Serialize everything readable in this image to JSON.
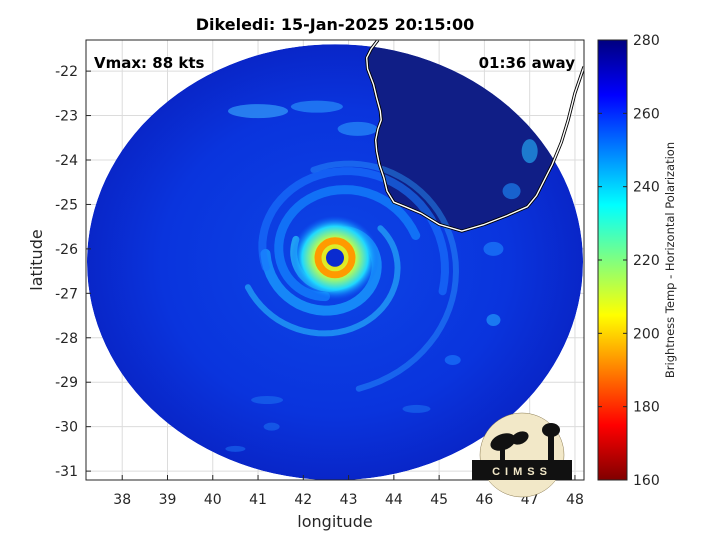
{
  "chart_data": {
    "type": "heatmap",
    "title": "Dikeledi: 15-Jan-2025 20:15:00",
    "xlabel": "longitude",
    "ylabel": "latitude",
    "xlim": [
      37.2,
      48.2
    ],
    "ylim": [
      -31.2,
      -21.3
    ],
    "xticks": [
      "38",
      "39",
      "40",
      "41",
      "42",
      "43",
      "44",
      "45",
      "46",
      "47",
      "48"
    ],
    "yticks": [
      "-22",
      "-23",
      "-24",
      "-25",
      "-26",
      "-27",
      "-28",
      "-29",
      "-30",
      "-31"
    ],
    "grid": true,
    "annotations": {
      "vmax": "Vmax: 88 kts",
      "time_away": "01:36 away"
    },
    "storm_center": {
      "lon": 42.7,
      "lat": -26.2
    },
    "swath_center": {
      "lon": 42.7,
      "lat": -26.3
    },
    "colorbar": {
      "label": "Brightness Temp - Horizontal Polarization",
      "min": 160,
      "max": 280,
      "ticks": [
        "280",
        "260",
        "240",
        "220",
        "200",
        "180",
        "160"
      ],
      "colormap": [
        "#800000",
        "#ff0000",
        "#ff8000",
        "#ffff00",
        "#80ff80",
        "#00ffff",
        "#0080ff",
        "#0000ff",
        "#000080"
      ]
    },
    "logo_text": "CIMSS"
  }
}
